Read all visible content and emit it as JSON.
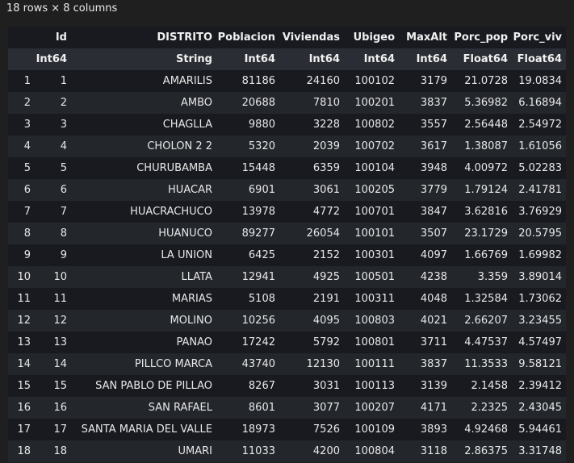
{
  "caption": "18 rows × 8 columns",
  "columns": [
    {
      "name": "Id",
      "type": "Int64"
    },
    {
      "name": "DISTRITO",
      "type": "String"
    },
    {
      "name": "Poblacion",
      "type": "Int64"
    },
    {
      "name": "Viviendas",
      "type": "Int64"
    },
    {
      "name": "Ubigeo",
      "type": "Int64"
    },
    {
      "name": "MaxAlt",
      "type": "Int64"
    },
    {
      "name": "Porc_pop",
      "type": "Float64"
    },
    {
      "name": "Porc_viv",
      "type": "Float64"
    }
  ],
  "rows": [
    {
      "n": "1",
      "cells": [
        "1",
        "AMARILIS",
        "81186",
        "24160",
        "100102",
        "3179",
        "21.0728",
        "19.0834"
      ]
    },
    {
      "n": "2",
      "cells": [
        "2",
        "AMBO",
        "20688",
        "7810",
        "100201",
        "3837",
        "5.36982",
        "6.16894"
      ]
    },
    {
      "n": "3",
      "cells": [
        "3",
        "CHAGLLA",
        "9880",
        "3228",
        "100802",
        "3557",
        "2.56448",
        "2.54972"
      ]
    },
    {
      "n": "4",
      "cells": [
        "4",
        "CHOLON 2 2",
        "5320",
        "2039",
        "100702",
        "3617",
        "1.38087",
        "1.61056"
      ]
    },
    {
      "n": "5",
      "cells": [
        "5",
        "CHURUBAMBA",
        "15448",
        "6359",
        "100104",
        "3948",
        "4.00972",
        "5.02283"
      ]
    },
    {
      "n": "6",
      "cells": [
        "6",
        "HUACAR",
        "6901",
        "3061",
        "100205",
        "3779",
        "1.79124",
        "2.41781"
      ]
    },
    {
      "n": "7",
      "cells": [
        "7",
        "HUACRACHUCO",
        "13978",
        "4772",
        "100701",
        "3847",
        "3.62816",
        "3.76929"
      ]
    },
    {
      "n": "8",
      "cells": [
        "8",
        "HUANUCO",
        "89277",
        "26054",
        "100101",
        "3507",
        "23.1729",
        "20.5795"
      ]
    },
    {
      "n": "9",
      "cells": [
        "9",
        "LA UNION",
        "6425",
        "2152",
        "100301",
        "4097",
        "1.66769",
        "1.69982"
      ]
    },
    {
      "n": "10",
      "cells": [
        "10",
        "LLATA",
        "12941",
        "4925",
        "100501",
        "4238",
        "3.359",
        "3.89014"
      ]
    },
    {
      "n": "11",
      "cells": [
        "11",
        "MARIAS",
        "5108",
        "2191",
        "100311",
        "4048",
        "1.32584",
        "1.73062"
      ]
    },
    {
      "n": "12",
      "cells": [
        "12",
        "MOLINO",
        "10256",
        "4095",
        "100803",
        "4021",
        "2.66207",
        "3.23455"
      ]
    },
    {
      "n": "13",
      "cells": [
        "13",
        "PANAO",
        "17242",
        "5792",
        "100801",
        "3711",
        "4.47537",
        "4.57497"
      ]
    },
    {
      "n": "14",
      "cells": [
        "14",
        "PILLCO MARCA",
        "43740",
        "12130",
        "100111",
        "3837",
        "11.3533",
        "9.58121"
      ]
    },
    {
      "n": "15",
      "cells": [
        "15",
        "SAN PABLO DE PILLAO",
        "8267",
        "3031",
        "100113",
        "3139",
        "2.1458",
        "2.39412"
      ]
    },
    {
      "n": "16",
      "cells": [
        "16",
        "SAN RAFAEL",
        "8601",
        "3077",
        "100207",
        "4171",
        "2.2325",
        "2.43045"
      ]
    },
    {
      "n": "17",
      "cells": [
        "17",
        "SANTA MARIA DEL VALLE",
        "18973",
        "7526",
        "100109",
        "3893",
        "4.92468",
        "5.94461"
      ]
    },
    {
      "n": "18",
      "cells": [
        "18",
        "UMARI",
        "11033",
        "4200",
        "100804",
        "3118",
        "2.86375",
        "3.31748"
      ]
    }
  ]
}
